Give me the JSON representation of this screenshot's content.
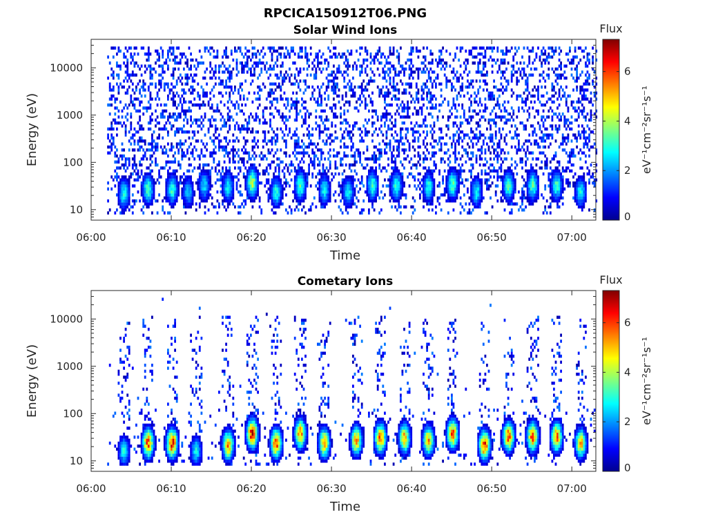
{
  "figure_title": "RPCICA150912T06.PNG",
  "colors": {
    "colormap": "jet",
    "axes": "#262626"
  },
  "chart_data": [
    {
      "type": "heatmap",
      "title": "Solar Wind Ions",
      "xlabel": "Time",
      "ylabel": "Energy (eV)",
      "xticks": [
        "06:00",
        "06:10",
        "06:20",
        "06:30",
        "06:40",
        "06:50",
        "07:00"
      ],
      "xlim": [
        "06:00",
        "07:03"
      ],
      "yscale": "log",
      "yticks": [
        10,
        100,
        1000,
        10000
      ],
      "ytick_labels": [
        "10",
        "100",
        "1000",
        "10000"
      ],
      "ylim": [
        6,
        40000
      ],
      "colorbar": {
        "title": "Flux",
        "label": "eV⁻¹cm⁻²sr⁻¹s⁻¹",
        "range": [
          0,
          7.3
        ],
        "ticks": [
          0,
          2,
          4,
          6
        ],
        "tick_labels": [
          "0",
          "2",
          "4",
          "6"
        ]
      },
      "data_start": "06:02",
      "data_end": "07:03",
      "background_noise": "sparse low-flux (0.3-1.8) speckle across 30-40000 eV",
      "bursts": [
        {
          "time": "06:04",
          "peak_energy_ev": 20,
          "peak_flux": 3.2
        },
        {
          "time": "06:07",
          "peak_energy_ev": 25,
          "peak_flux": 3.6
        },
        {
          "time": "06:10",
          "peak_energy_ev": 25,
          "peak_flux": 3.4
        },
        {
          "time": "06:12",
          "peak_energy_ev": 22,
          "peak_flux": 2.6
        },
        {
          "time": "06:14",
          "peak_energy_ev": 30,
          "peak_flux": 2.8
        },
        {
          "time": "06:17",
          "peak_energy_ev": 28,
          "peak_flux": 3.0
        },
        {
          "time": "06:20",
          "peak_energy_ev": 35,
          "peak_flux": 4.4
        },
        {
          "time": "06:23",
          "peak_energy_ev": 22,
          "peak_flux": 3.2
        },
        {
          "time": "06:26",
          "peak_energy_ev": 30,
          "peak_flux": 3.6
        },
        {
          "time": "06:29",
          "peak_energy_ev": 25,
          "peak_flux": 3.0
        },
        {
          "time": "06:32",
          "peak_energy_ev": 22,
          "peak_flux": 3.0
        },
        {
          "time": "06:35",
          "peak_energy_ev": 30,
          "peak_flux": 3.4
        },
        {
          "time": "06:38",
          "peak_energy_ev": 30,
          "peak_flux": 3.4
        },
        {
          "time": "06:42",
          "peak_energy_ev": 28,
          "peak_flux": 3.2
        },
        {
          "time": "06:45",
          "peak_energy_ev": 32,
          "peak_flux": 3.6
        },
        {
          "time": "06:48",
          "peak_energy_ev": 22,
          "peak_flux": 3.0
        },
        {
          "time": "06:52",
          "peak_energy_ev": 30,
          "peak_flux": 3.6
        },
        {
          "time": "06:55",
          "peak_energy_ev": 30,
          "peak_flux": 3.6
        },
        {
          "time": "06:58",
          "peak_energy_ev": 30,
          "peak_flux": 3.4
        },
        {
          "time": "07:01",
          "peak_energy_ev": 22,
          "peak_flux": 3.0
        }
      ]
    },
    {
      "type": "heatmap",
      "title": "Cometary Ions",
      "xlabel": "Time",
      "ylabel": "Energy (eV)",
      "xticks": [
        "06:00",
        "06:10",
        "06:20",
        "06:30",
        "06:40",
        "06:50",
        "07:00"
      ],
      "xlim": [
        "06:00",
        "07:03"
      ],
      "yscale": "log",
      "yticks": [
        10,
        100,
        1000,
        10000
      ],
      "ytick_labels": [
        "10",
        "100",
        "1000",
        "10000"
      ],
      "ylim": [
        6,
        40000
      ],
      "colorbar": {
        "title": "Flux",
        "label": "eV⁻¹cm⁻²sr⁻¹s⁻¹",
        "range": [
          0,
          7.3
        ],
        "ticks": [
          0,
          2,
          4,
          6
        ],
        "tick_labels": [
          "0",
          "2",
          "4",
          "6"
        ]
      },
      "data_start": "06:02",
      "data_end": "07:03",
      "background_noise": "sparse low-flux (0.3-1.5) columns up to 10000 eV at each burst",
      "bursts": [
        {
          "time": "06:04",
          "peak_energy_ev": 15,
          "peak_flux": 3.0
        },
        {
          "time": "06:07",
          "peak_energy_ev": 22,
          "peak_flux": 6.4
        },
        {
          "time": "06:10",
          "peak_energy_ev": 22,
          "peak_flux": 6.8
        },
        {
          "time": "06:13",
          "peak_energy_ev": 15,
          "peak_flux": 3.0
        },
        {
          "time": "06:17",
          "peak_energy_ev": 20,
          "peak_flux": 5.8
        },
        {
          "time": "06:20",
          "peak_energy_ev": 35,
          "peak_flux": 7.0
        },
        {
          "time": "06:23",
          "peak_energy_ev": 22,
          "peak_flux": 6.4
        },
        {
          "time": "06:26",
          "peak_energy_ev": 35,
          "peak_flux": 6.0
        },
        {
          "time": "06:29",
          "peak_energy_ev": 22,
          "peak_flux": 5.6
        },
        {
          "time": "06:33",
          "peak_energy_ev": 25,
          "peak_flux": 5.6
        },
        {
          "time": "06:36",
          "peak_energy_ev": 28,
          "peak_flux": 6.4
        },
        {
          "time": "06:39",
          "peak_energy_ev": 28,
          "peak_flux": 5.6
        },
        {
          "time": "06:42",
          "peak_energy_ev": 25,
          "peak_flux": 5.4
        },
        {
          "time": "06:45",
          "peak_energy_ev": 35,
          "peak_flux": 6.2
        },
        {
          "time": "06:49",
          "peak_energy_ev": 20,
          "peak_flux": 6.6
        },
        {
          "time": "06:52",
          "peak_energy_ev": 30,
          "peak_flux": 6.4
        },
        {
          "time": "06:55",
          "peak_energy_ev": 30,
          "peak_flux": 6.4
        },
        {
          "time": "06:58",
          "peak_energy_ev": 30,
          "peak_flux": 6.0
        },
        {
          "time": "07:01",
          "peak_energy_ev": 22,
          "peak_flux": 5.4
        }
      ]
    }
  ]
}
